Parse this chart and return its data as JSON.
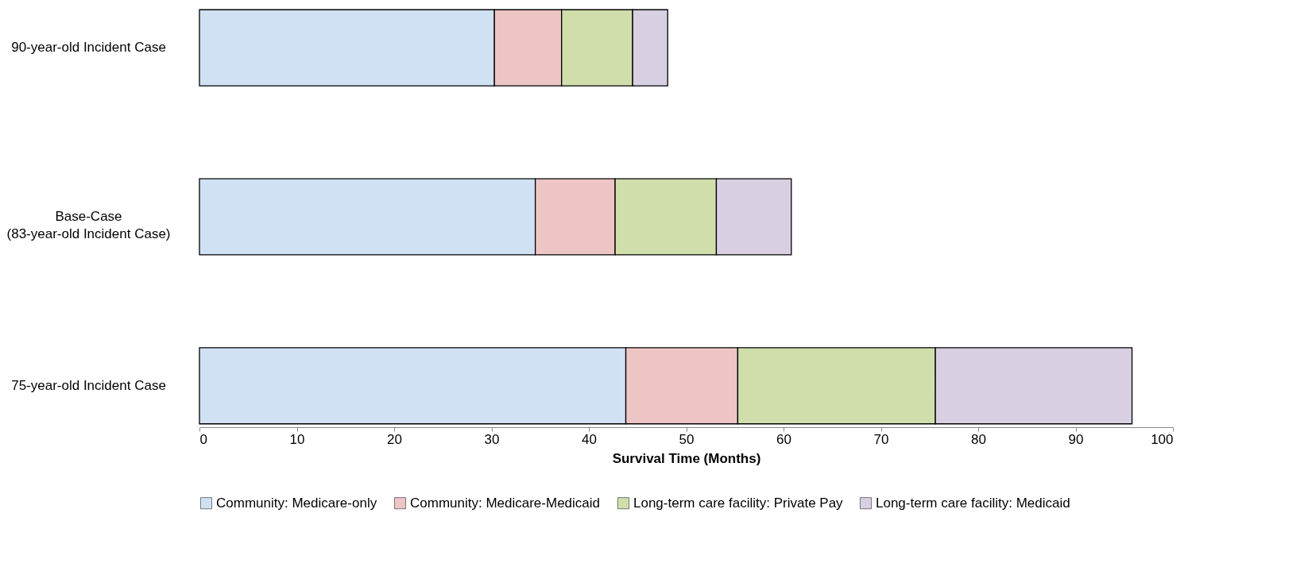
{
  "chart_data": {
    "type": "bar",
    "orientation": "horizontal",
    "stacked": true,
    "xlabel": "Survival Time (Months)",
    "categories": [
      "90-year-old Incident Case",
      "Base-Case\n(83-year-old  Incident Case)",
      "75-year-old Incident Case"
    ],
    "series": [
      {
        "name": "Community: Medicare-only",
        "color": "#d0e1f3",
        "values": [
          30.3,
          34.5,
          43.8
        ]
      },
      {
        "name": "Community: Medicare-Medicaid",
        "color": "#ecc5c4",
        "values": [
          6.9,
          8.2,
          11.5
        ]
      },
      {
        "name": "Long-term care facility: Private Pay",
        "color": "#cfdeab",
        "values": [
          7.3,
          10.4,
          20.3
        ]
      },
      {
        "name": "Long-term care facility: Medicaid",
        "color": "#d8cfe2",
        "values": [
          3.6,
          7.7,
          20.2
        ]
      }
    ],
    "xlim": [
      0,
      100
    ],
    "xticks": [
      0,
      10,
      20,
      30,
      40,
      50,
      60,
      70,
      80,
      90,
      100
    ],
    "grid": false,
    "legend": "bottom"
  }
}
